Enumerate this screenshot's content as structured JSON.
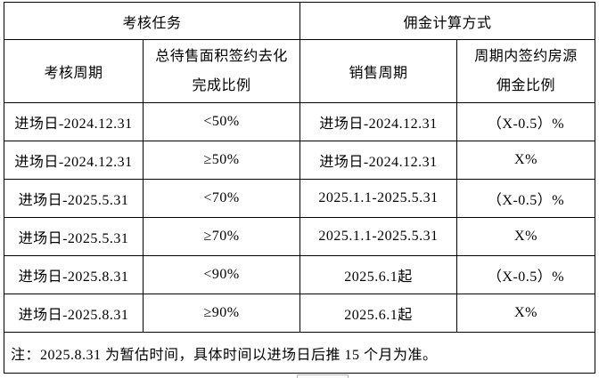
{
  "colors": {
    "background": "#ffffff",
    "border": "#000000",
    "text": "#000000"
  },
  "table": {
    "header_groups": [
      {
        "label": "考核任务"
      },
      {
        "label": "佣金计算方式"
      }
    ],
    "columns": [
      {
        "label": "考核周期"
      },
      {
        "label_line1": "总待售面积签约去化",
        "label_line2": "完成比例"
      },
      {
        "label": "销售周期"
      },
      {
        "label_line1": "周期内签约房源",
        "label_line2": "佣金比例"
      }
    ],
    "rows": [
      [
        "进场日-2024.12.31",
        "<50%",
        "进场日-2024.12.31",
        "（X-0.5）%"
      ],
      [
        "进场日-2024.12.31",
        "≥50%",
        "进场日-2024.12.31",
        "X%"
      ],
      [
        "进场日-2025.5.31",
        "<70%",
        "2025.1.1-2025.5.31",
        "（X-0.5）%"
      ],
      [
        "进场日-2025.5.31",
        "≥70%",
        "2025.1.1-2025.5.31",
        "X%"
      ],
      [
        "进场日-2025.8.31",
        "<90%",
        "2025.6.1起",
        "（X-0.5）%"
      ],
      [
        "进场日-2025.8.31",
        "≥90%",
        "2025.6.1起",
        "X%"
      ]
    ],
    "note": "注：2025.8.31 为暂估时间，具体时间以进场日后推 15 个月为准。"
  }
}
